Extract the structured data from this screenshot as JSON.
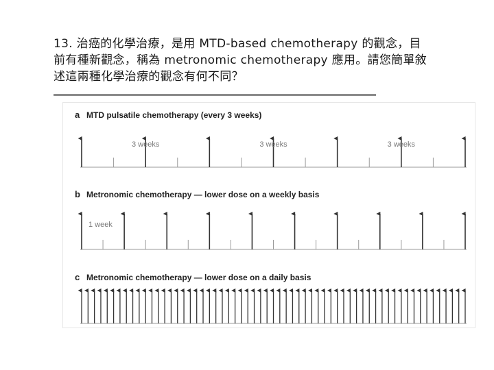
{
  "question": {
    "line1": "13. 治癌的化學治療，是用 MTD-based chemotherapy 的觀念，目",
    "line2": "前有種新觀念，稱為 metronomic chemotherapy 應用。請您簡單敘",
    "line3": "述這兩種化學治療的觀念有何不同？"
  },
  "panels": [
    {
      "letter": "a",
      "title": "MTD pulsatile chemotherapy (every 3 weeks)",
      "arrow_count": 7,
      "interval_labels": [
        "3 weeks",
        "3 weeks",
        "3 weeks"
      ]
    },
    {
      "letter": "b",
      "title": "Metronomic chemotherapy — lower dose on a weekly basis",
      "arrow_count": 10,
      "interval_labels": [
        "1 week"
      ]
    },
    {
      "letter": "c",
      "title": "Metronomic chemotherapy — lower dose on a daily basis",
      "arrow_count": 61,
      "interval_labels": []
    }
  ],
  "colors": {
    "arrow": "#333333",
    "axis": "#9a9a9a",
    "label": "#777777",
    "title": "#222222"
  }
}
